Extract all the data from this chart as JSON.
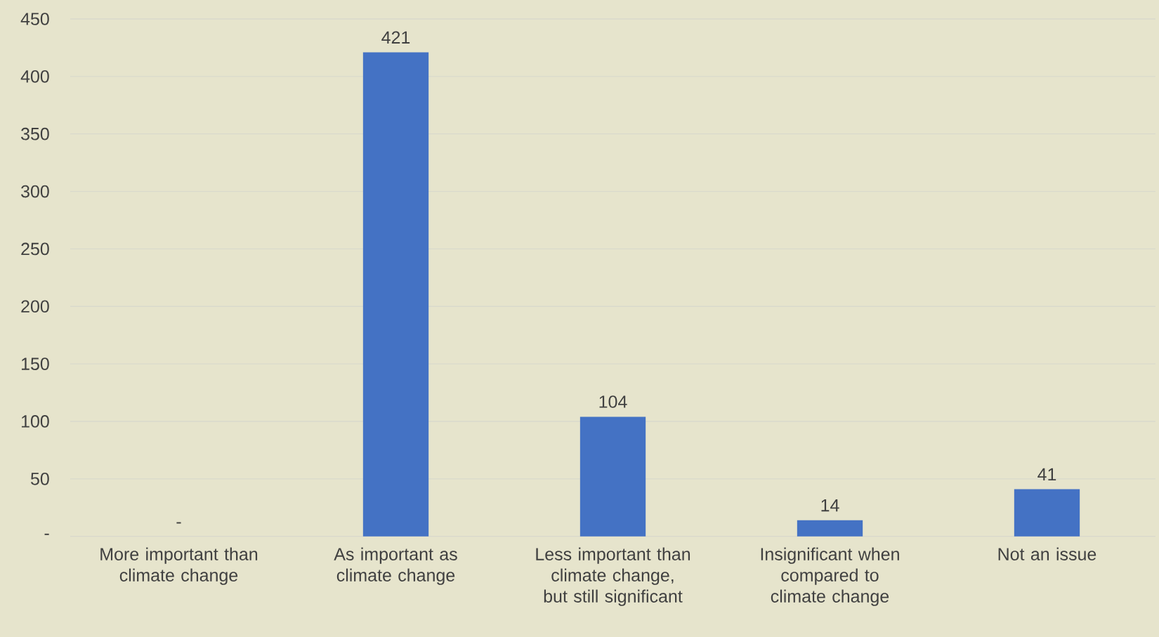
{
  "chart_data": {
    "type": "bar",
    "categories": [
      "More important than climate change",
      "As important as climate change",
      "Less important than climate change, but still significant",
      "Insignificant when compared to climate change",
      "Not an issue"
    ],
    "values": [
      0,
      421,
      104,
      14,
      41
    ],
    "value_labels": [
      "-",
      "421",
      "104",
      "14",
      "41"
    ],
    "color": "#4472c4",
    "ylim": [
      0,
      450
    ],
    "yticks": [
      {
        "value": 0,
        "label": "-"
      },
      50,
      100,
      150,
      200,
      250,
      300,
      350,
      400,
      450
    ],
    "grid": "y"
  }
}
